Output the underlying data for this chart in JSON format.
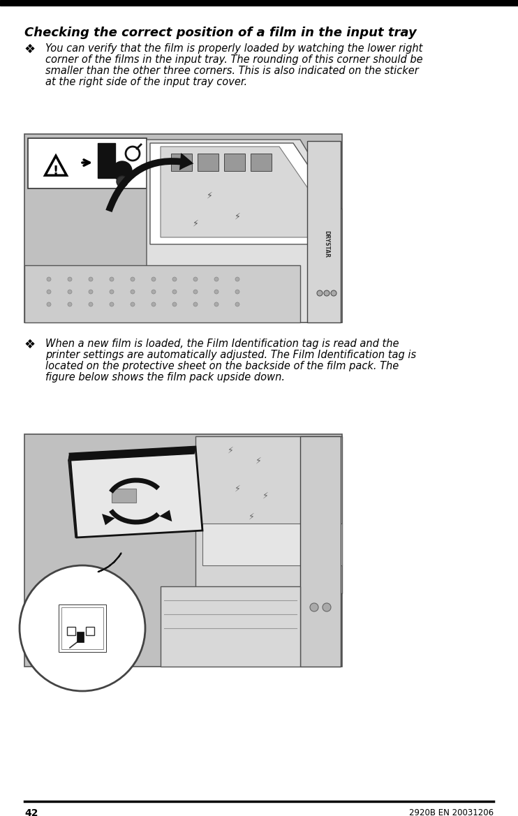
{
  "page_width": 7.42,
  "page_height": 11.69,
  "dpi": 100,
  "bg_color": "#ffffff",
  "top_bar_color": "#000000",
  "title": "Checking the correct position of a film in the input tray",
  "title_fontsize": 13,
  "bullet_char": "❖",
  "bullet_fontsize": 13,
  "text1_lines": [
    "You can verify that the film is properly loaded by watching the lower right",
    "corner of the films in the input tray. The rounding of this corner should be",
    "smaller than the other three corners. This is also indicated on the sticker",
    "at the right side of the input tray cover."
  ],
  "text2_lines": [
    "When a new film is loaded, the Film Identification tag is read and the",
    "printer settings are automatically adjusted. The Film Identification tag is",
    "located on the protective sheet on the backside of the film pack. The",
    "figure below shows the film pack upside down."
  ],
  "text_fontsize": 10.5,
  "image1_bg": "#c0c0c0",
  "image2_bg": "#c0c0c0",
  "footer_page_num": "42",
  "footer_doc_num": "2920B EN 20031206"
}
